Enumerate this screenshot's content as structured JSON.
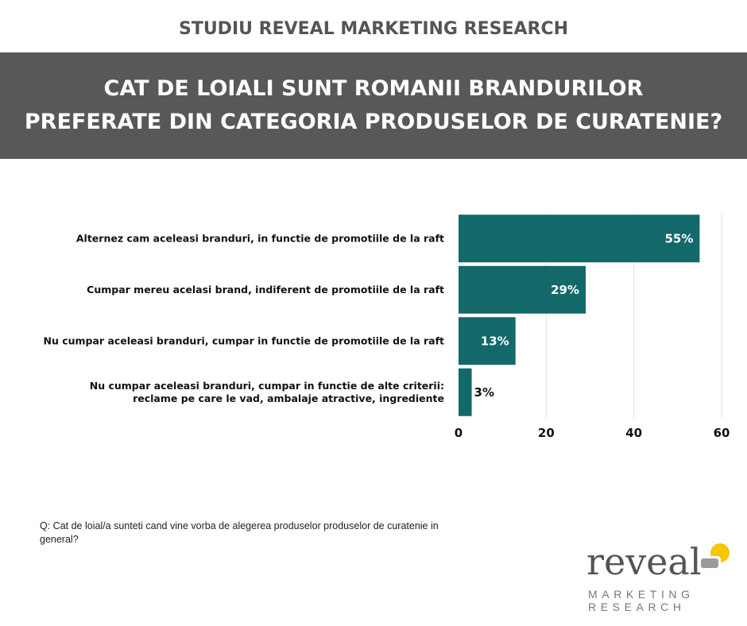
{
  "header": {
    "study": "STUDIU REVEAL MARKETING RESEARCH",
    "title_lines": [
      "CAT DE LOIALI SUNT ROMANII BRANDURILOR",
      "PREFERATE DIN CATEGORIA PRODUSELOR DE CURATENIE?"
    ]
  },
  "colors": {
    "bar": "#13686a",
    "band": "#585858",
    "grid": "#e2e2e2",
    "logo_accent": "#f7c600",
    "logo_gray": "#9a9a9a"
  },
  "chart_data": {
    "type": "bar",
    "orientation": "horizontal",
    "categories": [
      [
        "Alternez cam aceleasi branduri, in functie de promotiile de la raft"
      ],
      [
        "Cumpar mereu acelasi brand, indiferent de promotiile de la raft"
      ],
      [
        "Nu cumpar aceleasi branduri, cumpar in functie de promotiile de la raft"
      ],
      [
        "Nu cumpar aceleasi branduri, cumpar in functie de alte criterii:",
        "reclame pe care le vad, ambalaje atractive, ingrediente"
      ]
    ],
    "values": [
      55,
      29,
      13,
      3
    ],
    "data_labels": [
      "55%",
      "29%",
      "13%",
      "3%"
    ],
    "xlim": [
      0,
      60
    ],
    "xticks": [
      0,
      20,
      40,
      60
    ],
    "grid": true
  },
  "footer": {
    "question": "Q: Cat de loial/a sunteti cand vine vorba de alegerea produselor produselor de curatenie in general?"
  },
  "logo": {
    "word": "reveal",
    "line1": "MARKETING",
    "line2": "RESEARCH"
  }
}
